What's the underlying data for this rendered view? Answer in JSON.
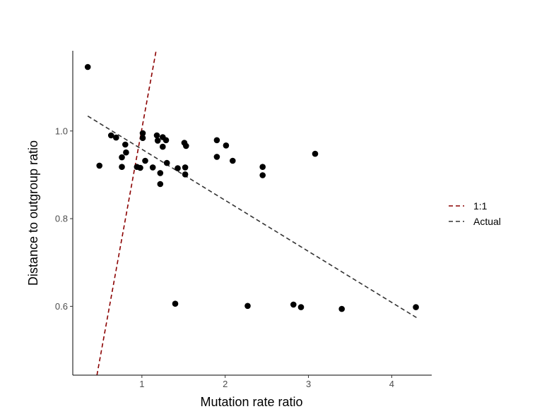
{
  "chart_data": {
    "type": "scatter",
    "title": "",
    "xlabel": "Mutation rate ratio",
    "ylabel": "Distance to outgroup ratio",
    "xlim": [
      0.17,
      4.48
    ],
    "ylim": [
      0.443,
      1.183
    ],
    "x_ticks": [
      {
        "value": 1,
        "label": "1"
      },
      {
        "value": 2,
        "label": "2"
      },
      {
        "value": 3,
        "label": "3"
      },
      {
        "value": 4,
        "label": "4"
      }
    ],
    "y_ticks": [
      {
        "value": 0.6,
        "label": "0.6"
      },
      {
        "value": 0.8,
        "label": "0.8"
      },
      {
        "value": 1.0,
        "label": "1.0"
      }
    ],
    "grid": false,
    "legend_position": "right",
    "point_color": "#000000",
    "points": [
      {
        "x": 0.35,
        "y": 1.146
      },
      {
        "x": 0.49,
        "y": 0.921
      },
      {
        "x": 0.63,
        "y": 0.99
      },
      {
        "x": 0.69,
        "y": 0.985
      },
      {
        "x": 0.76,
        "y": 0.94
      },
      {
        "x": 0.76,
        "y": 0.918
      },
      {
        "x": 0.8,
        "y": 0.969
      },
      {
        "x": 0.81,
        "y": 0.951
      },
      {
        "x": 0.94,
        "y": 0.918
      },
      {
        "x": 0.98,
        "y": 0.916
      },
      {
        "x": 1.01,
        "y": 0.995
      },
      {
        "x": 1.01,
        "y": 0.984
      },
      {
        "x": 1.04,
        "y": 0.932
      },
      {
        "x": 1.13,
        "y": 0.917
      },
      {
        "x": 1.18,
        "y": 0.99
      },
      {
        "x": 1.19,
        "y": 0.978
      },
      {
        "x": 1.22,
        "y": 0.904
      },
      {
        "x": 1.22,
        "y": 0.879
      },
      {
        "x": 1.25,
        "y": 0.986
      },
      {
        "x": 1.25,
        "y": 0.964
      },
      {
        "x": 1.29,
        "y": 0.979
      },
      {
        "x": 1.3,
        "y": 0.927
      },
      {
        "x": 1.43,
        "y": 0.915
      },
      {
        "x": 1.51,
        "y": 0.973
      },
      {
        "x": 1.52,
        "y": 0.917
      },
      {
        "x": 1.52,
        "y": 0.901
      },
      {
        "x": 1.53,
        "y": 0.966
      },
      {
        "x": 1.9,
        "y": 0.979
      },
      {
        "x": 1.9,
        "y": 0.941
      },
      {
        "x": 2.01,
        "y": 0.967
      },
      {
        "x": 2.09,
        "y": 0.932
      },
      {
        "x": 2.45,
        "y": 0.918
      },
      {
        "x": 2.45,
        "y": 0.899
      },
      {
        "x": 3.08,
        "y": 0.948
      },
      {
        "x": 1.4,
        "y": 0.606
      },
      {
        "x": 2.27,
        "y": 0.601
      },
      {
        "x": 2.82,
        "y": 0.604
      },
      {
        "x": 2.91,
        "y": 0.598
      },
      {
        "x": 3.4,
        "y": 0.594
      },
      {
        "x": 4.29,
        "y": 0.598
      }
    ],
    "lines": [
      {
        "name": "1:1",
        "color": "#8b0000",
        "dash": "dashed",
        "x": [
          0.46,
          1.17
        ],
        "y": [
          0.443,
          1.183
        ]
      },
      {
        "name": "Actual",
        "color": "#333333",
        "dash": "dashed",
        "x": [
          0.35,
          4.3
        ],
        "y": [
          1.034,
          0.574
        ]
      }
    ]
  }
}
